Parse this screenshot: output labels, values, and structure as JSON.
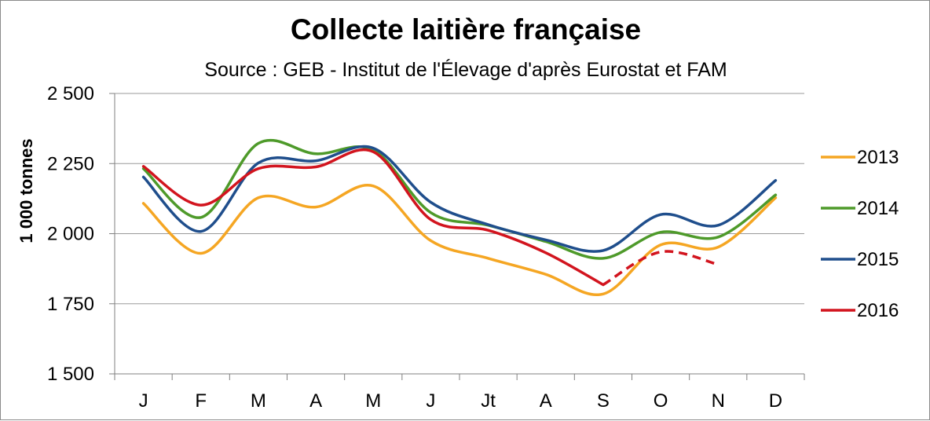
{
  "chart_data": {
    "type": "line",
    "title": "Collecte laitière française",
    "subtitle": "Source : GEB - Institut de l'Élevage d'après Eurostat et FAM",
    "ylabel": "1 000 tonnes",
    "xlabel": "",
    "categories": [
      "J",
      "F",
      "M",
      "A",
      "M",
      "J",
      "Jt",
      "A",
      "S",
      "O",
      "N",
      "D"
    ],
    "ylim": [
      1500,
      2500
    ],
    "yticks": [
      1500,
      1750,
      2000,
      2250,
      2500
    ],
    "ytick_labels": [
      "1 500",
      "1 750",
      "2 000",
      "2 250",
      "2 500"
    ],
    "grid": true,
    "legend_position": "right",
    "series": [
      {
        "name": "2013",
        "color": "#F5A623",
        "values": [
          2108,
          1930,
          2128,
          2095,
          2170,
          1975,
          1912,
          1855,
          1785,
          1960,
          1952,
          2128
        ]
      },
      {
        "name": "2014",
        "color": "#4E9A2A",
        "values": [
          2232,
          2058,
          2322,
          2285,
          2298,
          2075,
          2030,
          1972,
          1912,
          2005,
          1988,
          2138
        ]
      },
      {
        "name": "2015",
        "color": "#1F4E8C",
        "values": [
          2202,
          2008,
          2252,
          2260,
          2305,
          2112,
          2032,
          1978,
          1940,
          2068,
          2030,
          2190
        ]
      },
      {
        "name": "2016",
        "color": "#D2141E",
        "values": [
          2240,
          2102,
          2232,
          2238,
          2292,
          2050,
          2012,
          1932,
          1818,
          1935,
          1890,
          null
        ],
        "dashed_from_index": 8
      }
    ]
  }
}
